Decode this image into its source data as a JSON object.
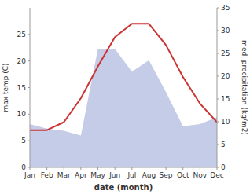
{
  "chart_data": {
    "type": "line",
    "categories": [
      "Jan",
      "Feb",
      "Mar",
      "Apr",
      "May",
      "Jun",
      "Jul",
      "Aug",
      "Sep",
      "Oct",
      "Nov",
      "Dec"
    ],
    "series": [
      {
        "type": "area",
        "axis": "y2",
        "color": "#c5cce8",
        "values": [
          9.5,
          8.5,
          8.0,
          7.0,
          26.0,
          26.0,
          21.0,
          23.5,
          16.5,
          9.0,
          9.5,
          11.0
        ]
      },
      {
        "type": "line",
        "color": "#cc3333",
        "values": [
          7.0,
          7.0,
          8.5,
          13.0,
          19.0,
          24.5,
          27.0,
          27.0,
          23.0,
          17.0,
          12.0,
          8.5
        ]
      }
    ],
    "xlabel": "date (month)",
    "ylabel": "max temp (C)",
    "y2label": "med. precipitation (kg/m2)",
    "ylim": [
      0,
      30
    ],
    "yticks": [
      0,
      5,
      10,
      15,
      20,
      25
    ],
    "y2lim": [
      0,
      35
    ],
    "y2ticks": [
      0,
      5,
      10,
      15,
      20,
      25,
      30,
      35
    ],
    "grid": false
  }
}
